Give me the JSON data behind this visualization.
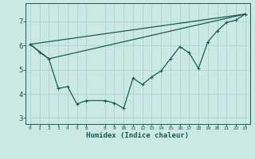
{
  "xlabel": "Humidex (Indice chaleur)",
  "bg_color": "#cce8e4",
  "grid_color": "#aad4d0",
  "line_color": "#1a5c50",
  "xlim": [
    -0.5,
    23.5
  ],
  "ylim": [
    2.75,
    7.75
  ],
  "xticks": [
    0,
    1,
    2,
    3,
    4,
    5,
    6,
    8,
    9,
    10,
    11,
    12,
    13,
    14,
    15,
    16,
    17,
    18,
    19,
    20,
    21,
    22,
    23
  ],
  "yticks": [
    3,
    4,
    5,
    6,
    7
  ],
  "line1_x": [
    0,
    1,
    2,
    3,
    4,
    5,
    6,
    8,
    9,
    10,
    11,
    12,
    13,
    14,
    15,
    16,
    17,
    18,
    19,
    20,
    21,
    22,
    23
  ],
  "line1_y": [
    6.05,
    5.72,
    5.45,
    4.22,
    4.3,
    3.58,
    3.72,
    3.72,
    3.62,
    3.4,
    4.65,
    4.38,
    4.7,
    4.95,
    5.45,
    5.95,
    5.7,
    5.05,
    6.15,
    6.6,
    6.95,
    7.05,
    7.3
  ],
  "line2_x": [
    0,
    23
  ],
  "line2_y": [
    6.05,
    7.3
  ],
  "line3_x": [
    0,
    2,
    23
  ],
  "line3_y": [
    6.05,
    5.45,
    7.3
  ]
}
